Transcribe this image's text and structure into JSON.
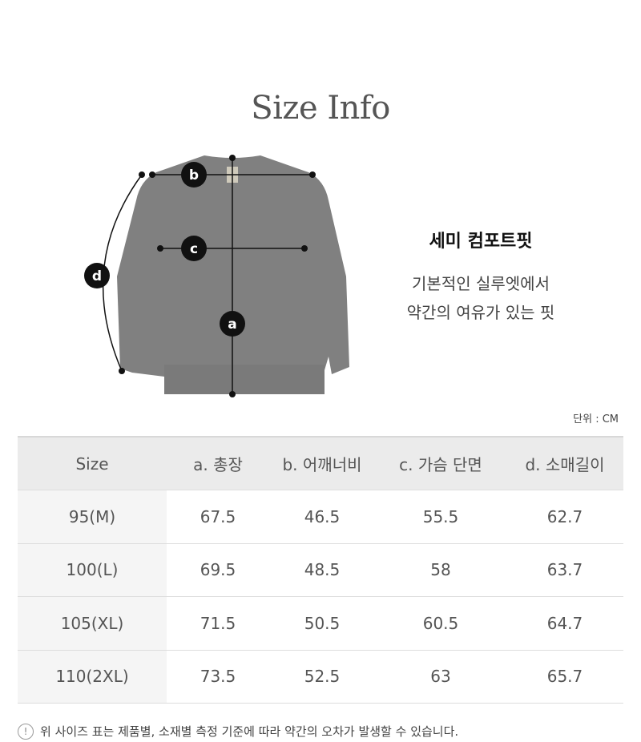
{
  "title": "Size Info",
  "diagram": {
    "labels": {
      "a": "a",
      "b": "b",
      "c": "c",
      "d": "d"
    },
    "garment_color": "#808080"
  },
  "fit": {
    "name": "세미 컴포트핏",
    "desc_line1": "기본적인 실루엣에서",
    "desc_line2": "약간의 여유가 있는 핏"
  },
  "unit": "단위 : CM",
  "table": {
    "headers": [
      "Size",
      "a. 총장",
      "b. 어깨너비",
      "c. 가슴 단면",
      "d. 소매길이"
    ],
    "rows": [
      [
        "95(M)",
        "67.5",
        "46.5",
        "55.5",
        "62.7"
      ],
      [
        "100(L)",
        "69.5",
        "48.5",
        "58",
        "63.7"
      ],
      [
        "105(XL)",
        "71.5",
        "50.5",
        "60.5",
        "64.7"
      ],
      [
        "110(2XL)",
        "73.5",
        "52.5",
        "63",
        "65.7"
      ]
    ]
  },
  "note": {
    "icon": "exclamation-circle-icon",
    "icon_glyph": "!",
    "text": "위 사이즈 표는 제품별, 소재별 측정 기준에 따라 약간의 오차가 발생할 수 있습니다."
  }
}
